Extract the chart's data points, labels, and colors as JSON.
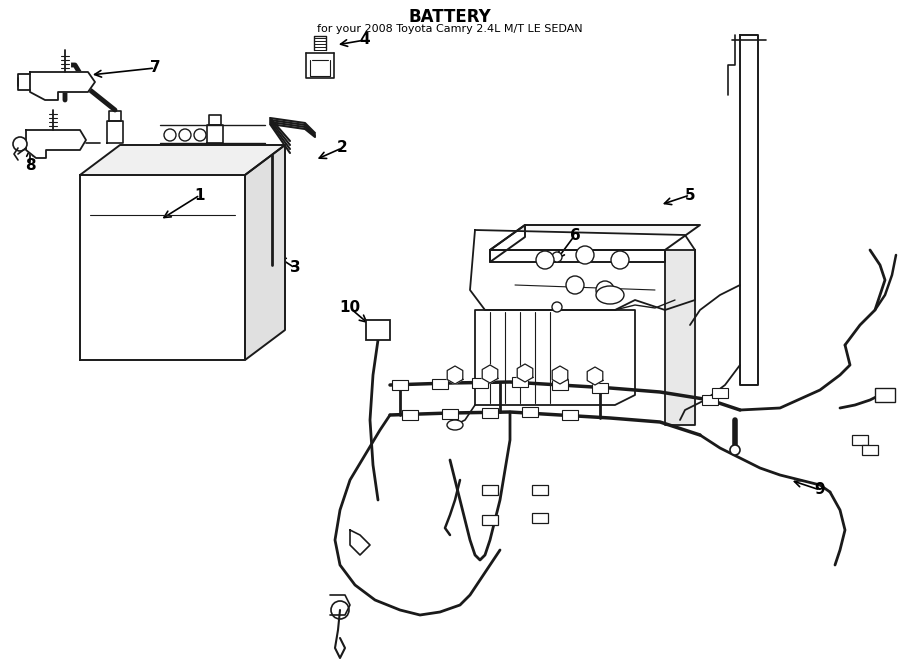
{
  "title": "BATTERY",
  "subtitle": "for your 2008 Toyota Camry 2.4L M/T LE SEDAN",
  "bg": "#ffffff",
  "lc": "#1a1a1a",
  "fig_w": 9.0,
  "fig_h": 6.61,
  "dpi": 100
}
